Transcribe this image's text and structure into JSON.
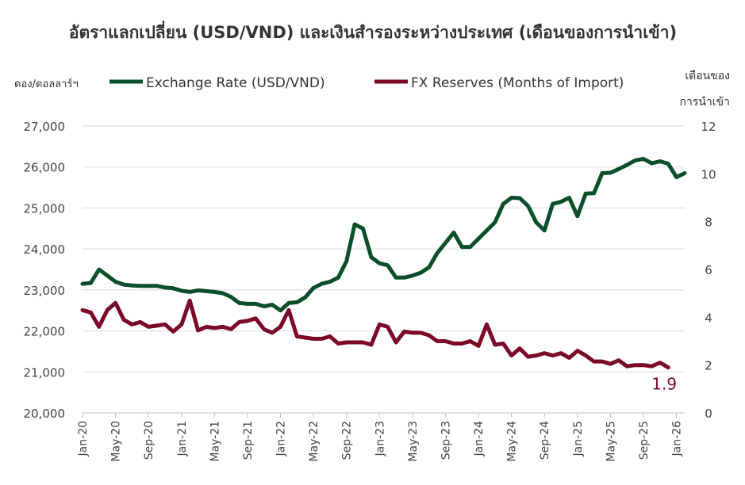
{
  "chart_data": {
    "type": "line",
    "title": "อัตราแลกเปลี่ยน (USD/VND) และเงินสำรองระหว่างประเทศ (เดือนของการนำเข้า)",
    "ylabel_left": "ดอง/ดอลลาร์ฯ",
    "ylabel_right_line1": "เดือนของ",
    "ylabel_right_line2": "การนำเข้า",
    "ylim_left": [
      20000,
      27000
    ],
    "ylim_right": [
      0,
      12
    ],
    "y_ticks_left": [
      "20,000",
      "21,000",
      "22,000",
      "23,000",
      "24,000",
      "25,000",
      "26,000",
      "27,000"
    ],
    "y_ticks_right": [
      "0",
      "2",
      "4",
      "6",
      "8",
      "10",
      "12"
    ],
    "x_ticks": [
      "Jan-20",
      "May-20",
      "Sep-20",
      "Jan-21",
      "May-21",
      "Sep-21",
      "Jan-22",
      "May-22",
      "Sep-22",
      "Jan-23",
      "May-23",
      "Sep-23",
      "Jan-24",
      "May-24",
      "Sep-24",
      "Jan-25",
      "May-25",
      "Sep-25",
      "Jan-26"
    ],
    "x_start": "Jan-20",
    "legend_position": "top",
    "annotation": "1.9",
    "series": [
      {
        "name": "Exchange Rate (USD/VND)",
        "axis": "left",
        "color": "#0b4f2a",
        "values": [
          23150,
          23170,
          23500,
          23350,
          23200,
          23130,
          23110,
          23100,
          23100,
          23100,
          23060,
          23040,
          22980,
          22950,
          22990,
          22970,
          22950,
          22920,
          22830,
          22680,
          22660,
          22660,
          22600,
          22640,
          22500,
          22680,
          22700,
          22820,
          23050,
          23150,
          23200,
          23300,
          23700,
          24600,
          24500,
          23800,
          23650,
          23600,
          23300,
          23300,
          23350,
          23420,
          23550,
          23900,
          24150,
          24400,
          24050,
          24050,
          24250,
          24450,
          24650,
          25100,
          25250,
          25240,
          25050,
          24650,
          24450,
          25100,
          25150,
          25250,
          24800,
          25350,
          25360,
          25850,
          25860,
          25950,
          26050,
          26160,
          26200,
          26090,
          26140,
          26080,
          25750,
          25850
        ]
      },
      {
        "name": "FX Reserves (Months of Import)",
        "axis": "right",
        "color": "#7a0a27",
        "values": [
          4.3,
          4.2,
          3.6,
          4.3,
          4.6,
          3.9,
          3.7,
          3.8,
          3.6,
          3.65,
          3.7,
          3.4,
          3.7,
          4.7,
          3.45,
          3.6,
          3.55,
          3.6,
          3.5,
          3.8,
          3.85,
          3.95,
          3.5,
          3.35,
          3.6,
          4.3,
          3.2,
          3.15,
          3.1,
          3.1,
          3.2,
          2.9,
          2.95,
          2.95,
          2.95,
          2.85,
          3.7,
          3.6,
          2.95,
          3.4,
          3.35,
          3.35,
          3.25,
          3.0,
          3.0,
          2.9,
          2.9,
          3.0,
          2.8,
          3.7,
          2.85,
          2.9,
          2.4,
          2.7,
          2.35,
          2.4,
          2.5,
          2.4,
          2.5,
          2.3,
          2.6,
          2.4,
          2.15,
          2.15,
          2.05,
          2.2,
          1.95,
          2.0,
          2.0,
          1.95,
          2.1,
          1.9
        ]
      }
    ]
  }
}
